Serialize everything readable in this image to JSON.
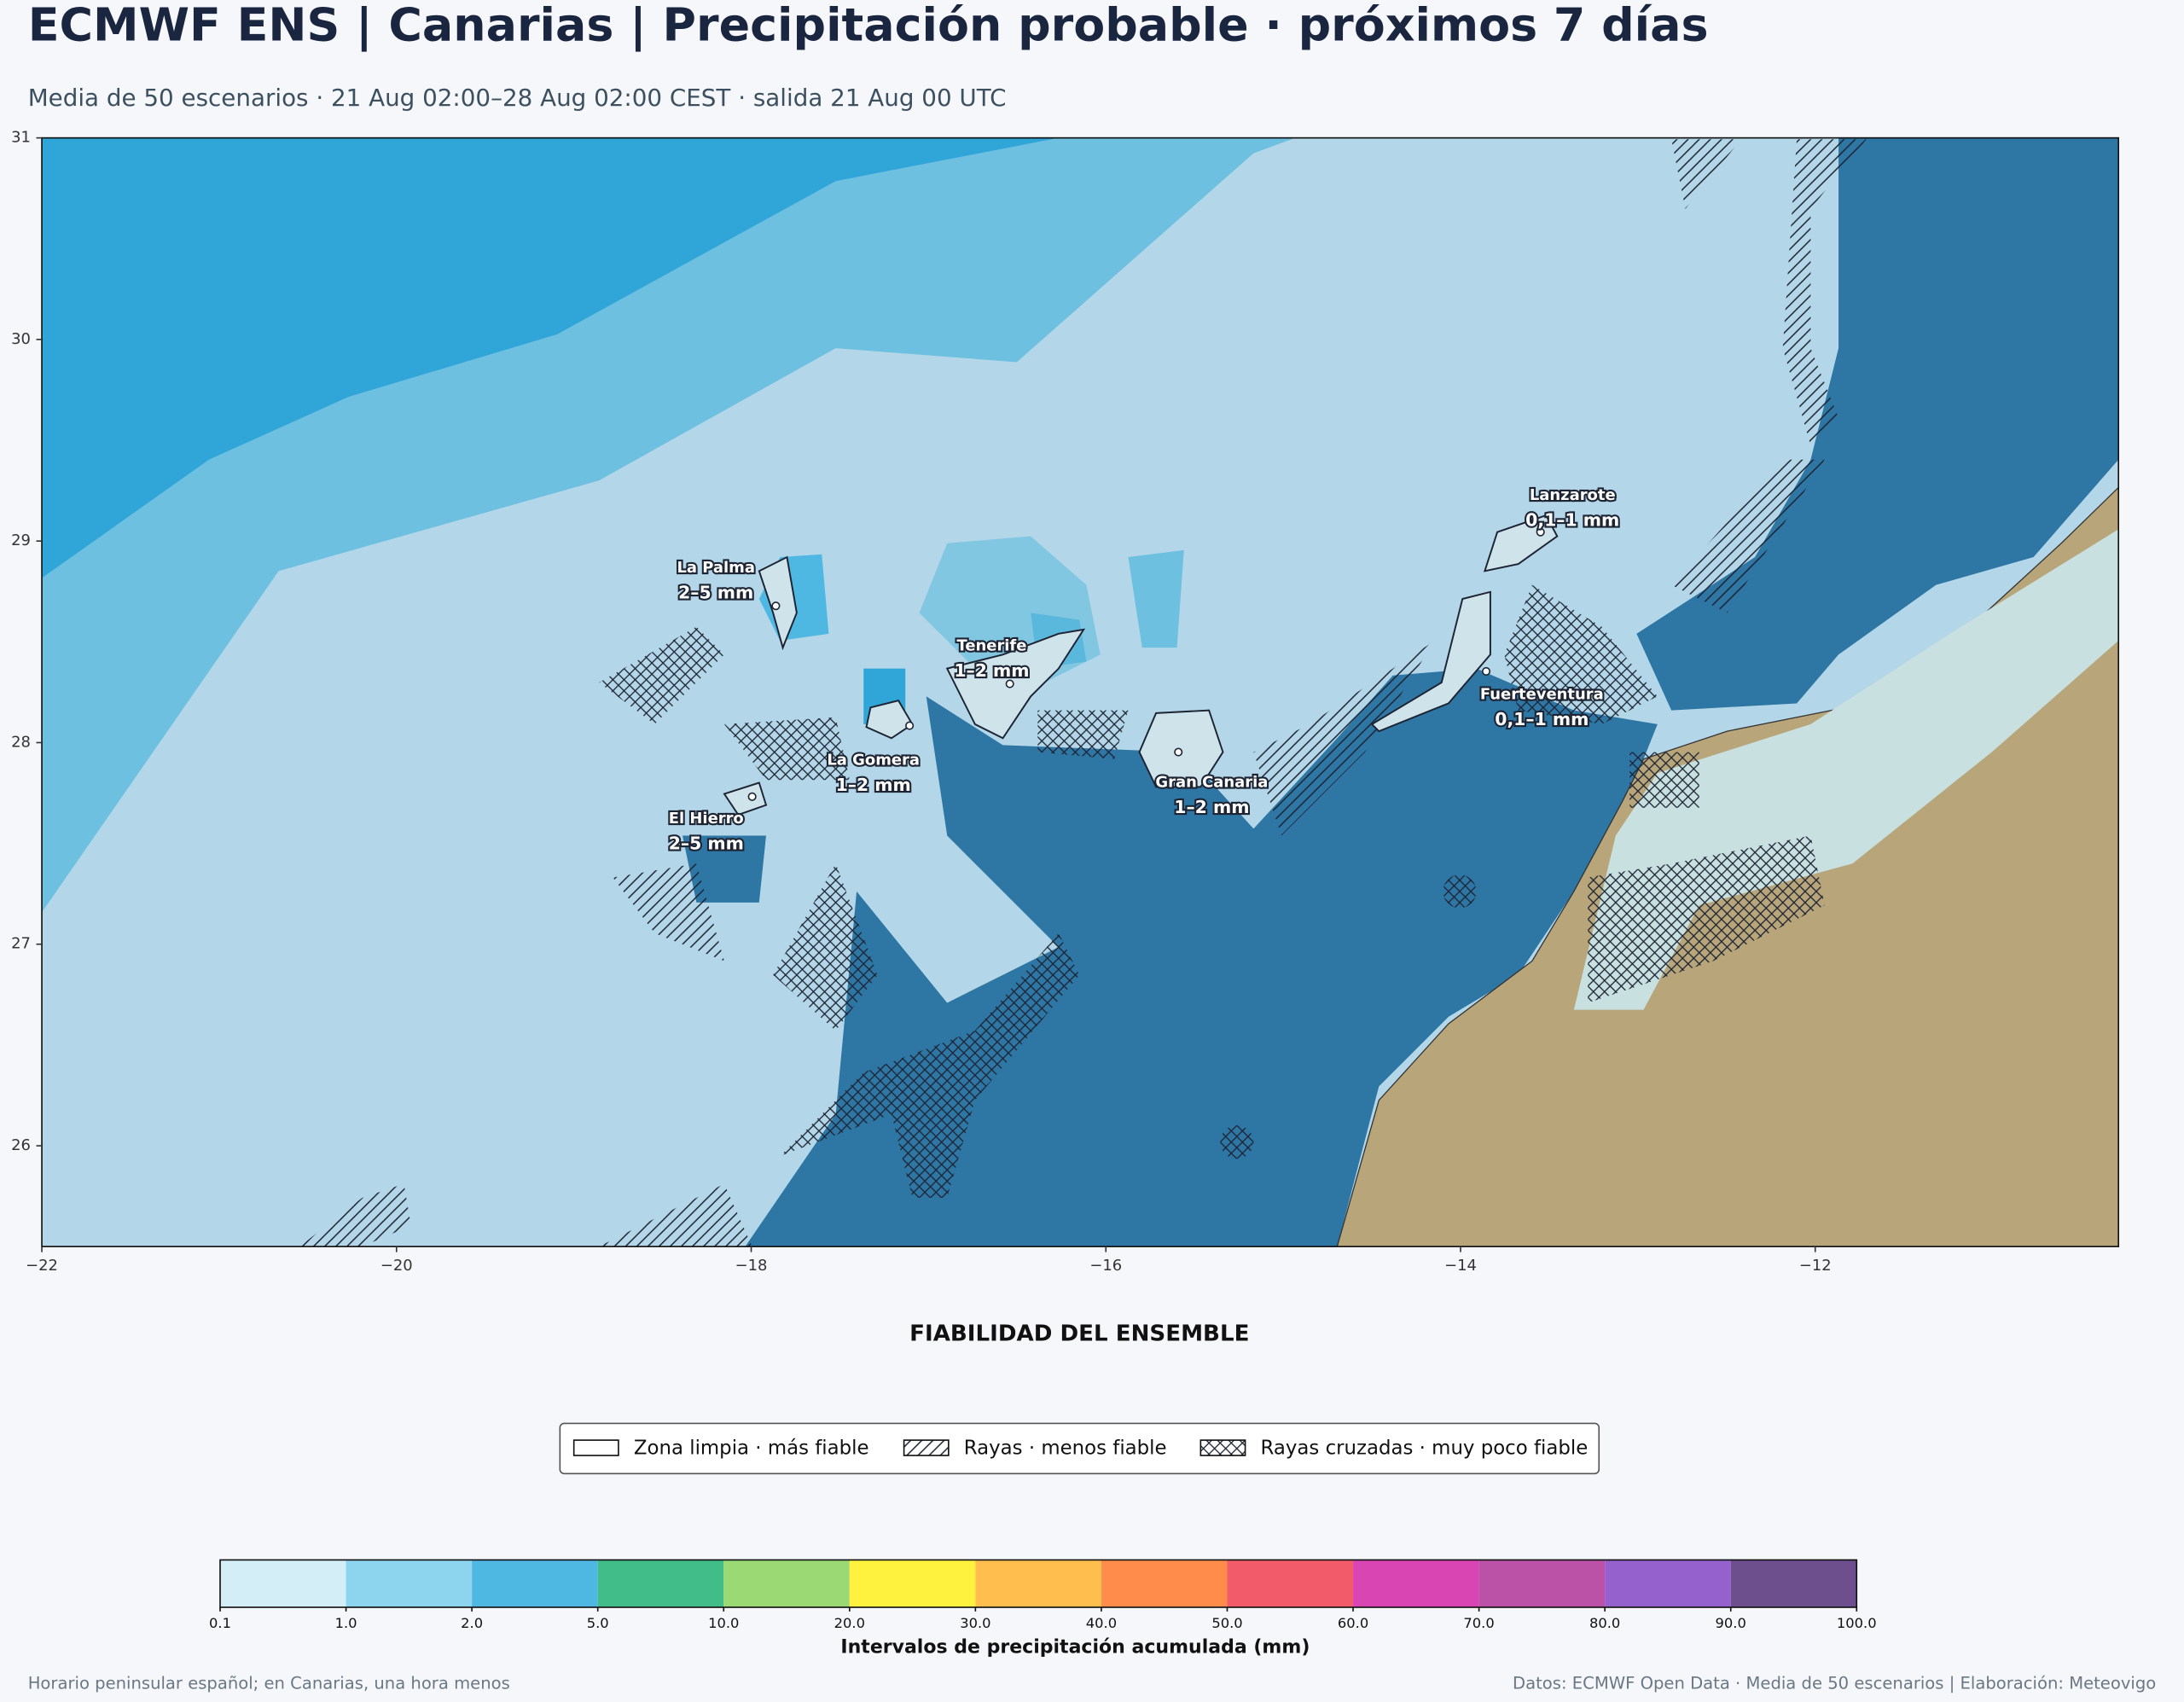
{
  "header": {
    "title": "ECMWF ENS | Canarias | Precipitación probable · próximos 7 días",
    "subtitle": "Media de 50 escenarios · 21 Aug 02:00–28 Aug 02:00 CEST · salida 21 Aug 00 UTC"
  },
  "map": {
    "xlim": [
      -22,
      -10.29
    ],
    "ylim": [
      25.5,
      31
    ],
    "xticks": [
      {
        "value": -22,
        "label": "−22"
      },
      {
        "value": -20,
        "label": "−20"
      },
      {
        "value": -18,
        "label": "−18"
      },
      {
        "value": -16,
        "label": "−16"
      },
      {
        "value": -14,
        "label": "−14"
      },
      {
        "value": -12,
        "label": "−12"
      }
    ],
    "yticks": [
      26,
      27,
      28,
      29,
      30,
      31
    ],
    "islands": [
      {
        "name": "La Palma",
        "range": "2–5 mm"
      },
      {
        "name": "Tenerife",
        "range": "1–2 mm"
      },
      {
        "name": "La Gomera",
        "range": "1–2 mm"
      },
      {
        "name": "El Hierro",
        "range": "2–5 mm"
      },
      {
        "name": "Gran Canaria",
        "range": "1–2 mm"
      },
      {
        "name": "Lanzarote",
        "range": "0,1–1 mm"
      },
      {
        "name": "Fuerteventura",
        "range": "0,1–1 mm"
      }
    ]
  },
  "reliability": {
    "title": "FIABILIDAD DEL ENSEMBLE",
    "items": [
      "Zona limpia · más fiable",
      "Rayas · menos fiable",
      "Rayas cruzadas · muy poco fiable"
    ]
  },
  "colorbar": {
    "label": "Intervalos de precipitación acumulada (mm)",
    "bounds": [
      0.1,
      {
        "value": 1,
        "label": "1.0"
      },
      {
        "value": 2,
        "label": "2.0"
      },
      {
        "value": 5,
        "label": "5.0"
      },
      {
        "value": 10,
        "label": "10.0"
      },
      {
        "value": 20,
        "label": "20.0"
      },
      {
        "value": 30,
        "label": "30.0"
      },
      {
        "value": 40,
        "label": "40.0"
      },
      {
        "value": 50,
        "label": "50.0"
      },
      {
        "value": 60,
        "label": "60.0"
      },
      {
        "value": 70,
        "label": "70.0"
      },
      {
        "value": 80,
        "label": "80.0"
      },
      {
        "value": 90,
        "label": "90.0"
      },
      {
        "value": 100,
        "label": "100.0"
      }
    ],
    "colors": [
      "#d4eef7",
      "#8dd4ee",
      "#4fb8e2",
      "#41bd8a",
      "#9ad974",
      "#fff23e",
      "#ffbe4e",
      "#ff8c4a",
      "#f25c6a",
      "#d946b4",
      "#bb52a8",
      "#9561cc",
      "#6e4f8e"
    ]
  },
  "footer": {
    "left": "Horario peninsular español; en Canarias, una hora menos",
    "right": "Datos: ECMWF Open Data · Media de 50 escenarios | Elaboración: Meteovigo"
  }
}
